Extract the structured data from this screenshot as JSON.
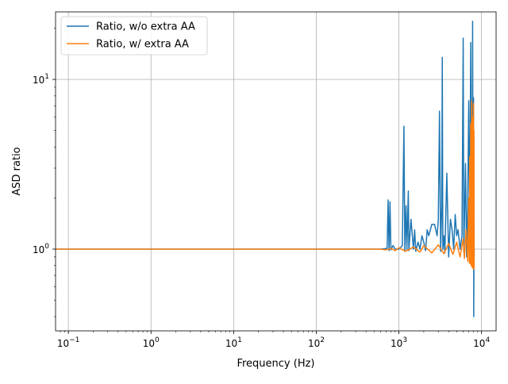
{
  "chart_data": {
    "type": "line",
    "title": "",
    "xlabel": "Frequency (Hz)",
    "ylabel": "ASD ratio",
    "xscale": "log",
    "yscale": "log",
    "xlim": [
      0.07,
      15000
    ],
    "ylim": [
      0.33,
      25
    ],
    "grid": true,
    "legend_position": "upper-left",
    "x_ticks": [
      {
        "value": 0.1,
        "base": "10",
        "exp": "−1"
      },
      {
        "value": 1,
        "base": "10",
        "exp": "0"
      },
      {
        "value": 10,
        "base": "10",
        "exp": "1"
      },
      {
        "value": 100,
        "base": "10",
        "exp": "2"
      },
      {
        "value": 1000,
        "base": "10",
        "exp": "3"
      },
      {
        "value": 10000,
        "base": "10",
        "exp": "4"
      }
    ],
    "y_ticks": [
      {
        "value": 1,
        "base": "10",
        "exp": "0"
      },
      {
        "value": 10,
        "base": "10",
        "exp": "1"
      }
    ],
    "series": [
      {
        "name": "Ratio, w/o extra AA",
        "color": "#1f77b4",
        "x": [
          0.07,
          1,
          10,
          100,
          300,
          600,
          720,
          740,
          760,
          780,
          800,
          850,
          900,
          1000,
          1100,
          1150,
          1180,
          1220,
          1250,
          1300,
          1320,
          1400,
          1500,
          1550,
          1600,
          1700,
          1800,
          1900,
          2000,
          2100,
          2200,
          2300,
          2500,
          2700,
          2900,
          3000,
          3100,
          3200,
          3300,
          3350,
          3400,
          3500,
          3600,
          3800,
          4000,
          4200,
          4400,
          4600,
          4800,
          5000,
          5200,
          5500,
          5800,
          6000,
          6100,
          6200,
          6400,
          6600,
          6800,
          7000,
          7200,
          7400,
          7600,
          7700,
          7800,
          7900,
          8000,
          8050,
          8100,
          8150
        ],
        "y": [
          1.0,
          1.0,
          1.0,
          1.0,
          1.0,
          1.0,
          1.01,
          1.95,
          0.98,
          1.9,
          0.99,
          1.05,
          1.0,
          1.0,
          1.05,
          5.3,
          0.97,
          1.8,
          1.0,
          2.2,
          0.98,
          1.5,
          1.0,
          1.3,
          0.97,
          1.1,
          1.0,
          1.2,
          1.1,
          0.98,
          1.3,
          1.2,
          1.4,
          1.4,
          1.2,
          1.5,
          6.5,
          0.97,
          1.8,
          13.5,
          1.0,
          1.2,
          0.95,
          2.8,
          0.9,
          1.5,
          1.3,
          1.0,
          1.6,
          1.2,
          1.3,
          1.0,
          1.2,
          17.5,
          0.96,
          1.4,
          3.2,
          0.9,
          1.8,
          7.5,
          1.2,
          16.5,
          0.85,
          1.0,
          22,
          0.85,
          7.8,
          0.4,
          1.2,
          0.9
        ]
      },
      {
        "name": "Ratio, w/ extra AA",
        "color": "#ff7f0e",
        "x": [
          0.07,
          1,
          10,
          100,
          300,
          600,
          700,
          800,
          900,
          1000,
          1200,
          1500,
          1800,
          2000,
          2500,
          3000,
          3500,
          4000,
          4500,
          5000,
          5500,
          6000,
          6200,
          6500,
          6800,
          7000,
          7100,
          7200,
          7300,
          7400,
          7500,
          7600,
          7700,
          7800,
          7900,
          8000,
          8050,
          8100,
          8150
        ],
        "y": [
          1.0,
          1.0,
          1.0,
          1.0,
          1.0,
          1.0,
          0.99,
          1.01,
          0.98,
          1.02,
          0.97,
          1.03,
          0.96,
          1.05,
          0.95,
          1.06,
          0.94,
          1.08,
          0.93,
          1.1,
          0.9,
          1.15,
          0.88,
          1.3,
          0.85,
          2.0,
          0.83,
          3.5,
          0.82,
          5.5,
          0.8,
          7.5,
          0.78,
          6.0,
          0.77,
          7.2,
          0.76,
          5.0,
          0.78
        ]
      }
    ]
  }
}
